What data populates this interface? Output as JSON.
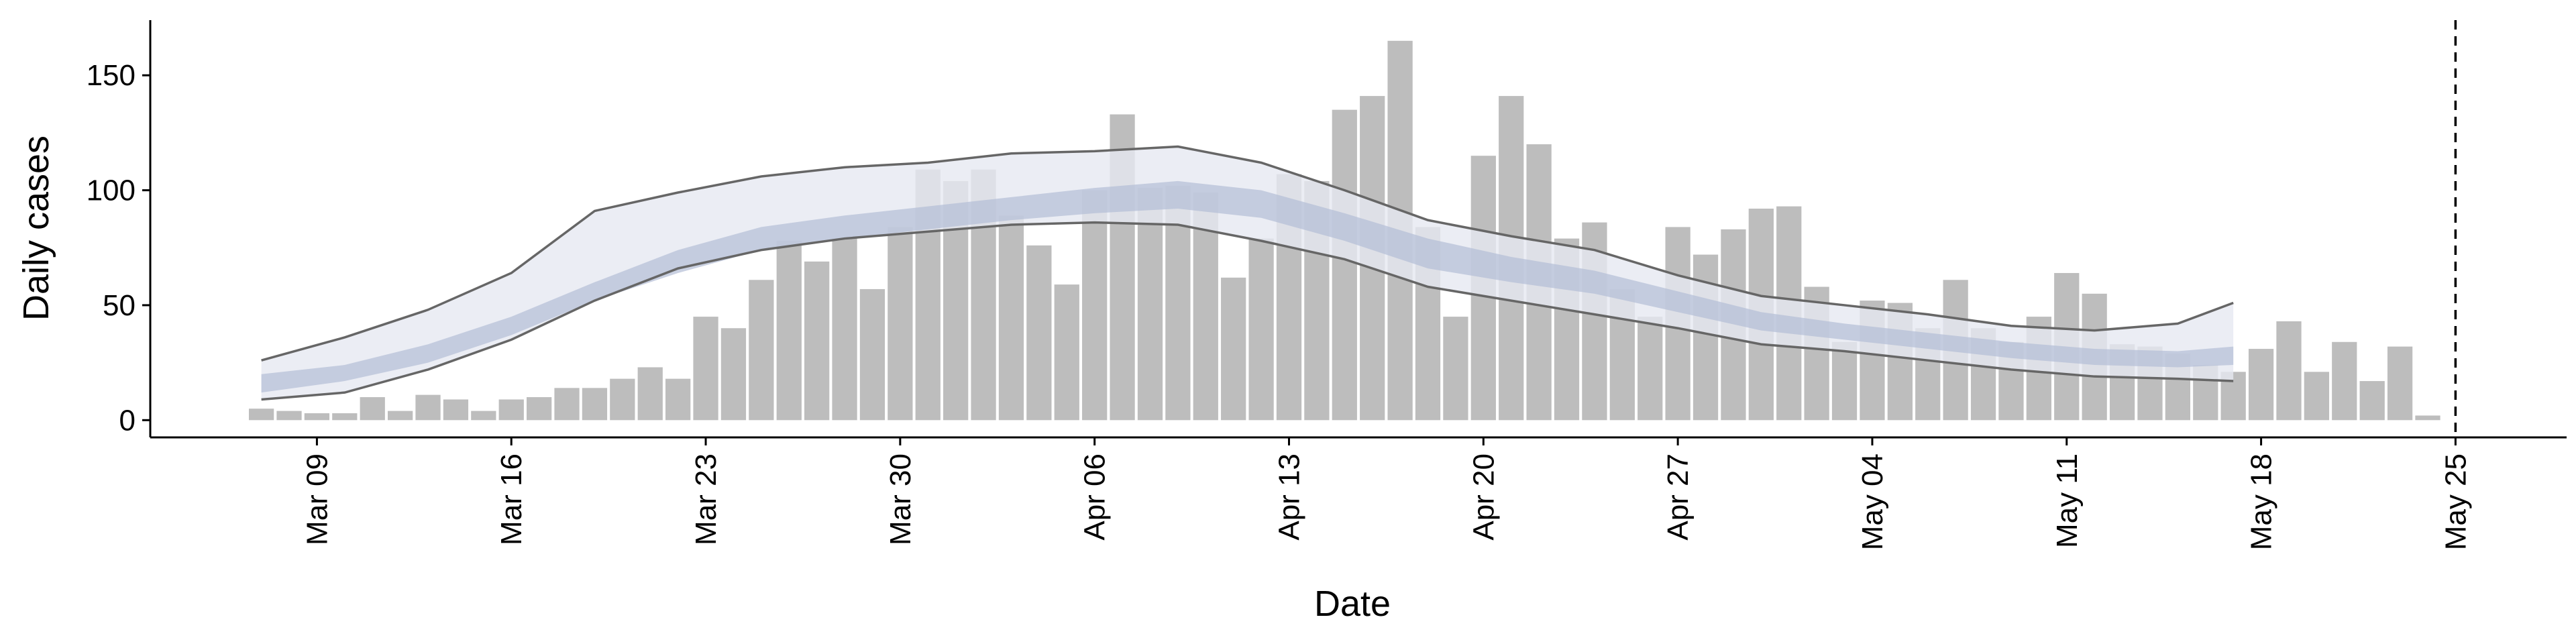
{
  "chart_data": {
    "type": "bar",
    "x_label": "Date",
    "y_label": "Daily cases",
    "x": [
      "Mar 07",
      "Mar 08",
      "Mar 09",
      "Mar 10",
      "Mar 11",
      "Mar 12",
      "Mar 13",
      "Mar 14",
      "Mar 15",
      "Mar 16",
      "Mar 17",
      "Mar 18",
      "Mar 19",
      "Mar 20",
      "Mar 21",
      "Mar 22",
      "Mar 23",
      "Mar 24",
      "Mar 25",
      "Mar 26",
      "Mar 27",
      "Mar 28",
      "Mar 29",
      "Mar 30",
      "Mar 31",
      "Apr 01",
      "Apr 02",
      "Apr 03",
      "Apr 04",
      "Apr 05",
      "Apr 06",
      "Apr 07",
      "Apr 08",
      "Apr 09",
      "Apr 10",
      "Apr 11",
      "Apr 12",
      "Apr 13",
      "Apr 14",
      "Apr 15",
      "Apr 16",
      "Apr 17",
      "Apr 18",
      "Apr 19",
      "Apr 20",
      "Apr 21",
      "Apr 22",
      "Apr 23",
      "Apr 24",
      "Apr 25",
      "Apr 26",
      "Apr 27",
      "Apr 28",
      "Apr 29",
      "Apr 30",
      "May 01",
      "May 02",
      "May 03",
      "May 04",
      "May 05",
      "May 06",
      "May 07",
      "May 08",
      "May 09",
      "May 10",
      "May 11",
      "May 12",
      "May 13",
      "May 14",
      "May 15",
      "May 16",
      "May 17",
      "May 18",
      "May 19",
      "May 20",
      "May 21",
      "May 22",
      "May 23",
      "May 24"
    ],
    "values": [
      5,
      4,
      3,
      3,
      10,
      4,
      11,
      9,
      4,
      9,
      10,
      14,
      14,
      18,
      23,
      18,
      45,
      40,
      61,
      78,
      69,
      79,
      57,
      84,
      109,
      104,
      109,
      89,
      76,
      59,
      100,
      133,
      101,
      102,
      99,
      62,
      79,
      107,
      104,
      135,
      141,
      165,
      84,
      45,
      115,
      141,
      120,
      79,
      86,
      57,
      45,
      84,
      72,
      83,
      92,
      93,
      58,
      34,
      52,
      51,
      40,
      61,
      40,
      34,
      45,
      64,
      55,
      33,
      32,
      29,
      24,
      21,
      31,
      43,
      21,
      34,
      17,
      32,
      2
    ],
    "color": "#bdbdbd",
    "ribbon": {
      "x": [
        "Mar 07",
        "Mar 10",
        "Mar 13",
        "Mar 16",
        "Mar 19",
        "Mar 22",
        "Mar 25",
        "Mar 28",
        "Mar 31",
        "Apr 03",
        "Apr 06",
        "Apr 09",
        "Apr 12",
        "Apr 15",
        "Apr 18",
        "Apr 21",
        "Apr 24",
        "Apr 27",
        "Apr 30",
        "May 03",
        "May 06",
        "May 09",
        "May 12",
        "May 15",
        "May 17"
      ],
      "outer_color": "#e6e8f1",
      "inner_color": "#b4bdd6",
      "line_color": "#666666",
      "outer_upper": [
        26,
        36,
        48,
        64,
        91,
        99,
        106,
        110,
        112,
        116,
        117,
        119,
        112,
        100,
        87,
        80,
        74,
        63,
        54,
        50,
        46,
        41,
        39,
        42,
        51
      ],
      "outer_lower": [
        9,
        12,
        22,
        35,
        52,
        66,
        74,
        79,
        82,
        85,
        86,
        85,
        78,
        70,
        58,
        52,
        46,
        40,
        33,
        30,
        26,
        22,
        19,
        18,
        17
      ],
      "inner_upper": [
        20,
        24,
        33,
        45,
        60,
        74,
        84,
        89,
        93,
        97,
        101,
        104,
        100,
        90,
        79,
        71,
        65,
        56,
        47,
        42,
        38,
        34,
        31,
        30,
        32
      ],
      "inner_lower": [
        12,
        17,
        25,
        37,
        52,
        64,
        74,
        79,
        83,
        87,
        90,
        92,
        88,
        78,
        66,
        60,
        55,
        47,
        39,
        35,
        31,
        27,
        24,
        23,
        24
      ]
    },
    "vline": "May 25",
    "xlim": [
      "Mar 03",
      "May 29"
    ],
    "xticks": [
      "Mar 09",
      "Mar 16",
      "Mar 23",
      "Mar 30",
      "Apr 06",
      "Apr 13",
      "Apr 20",
      "Apr 27",
      "May 04",
      "May 11",
      "May 18",
      "May 25"
    ],
    "ylim": [
      -7.5,
      174
    ],
    "yticks": [
      0,
      50,
      100,
      150
    ]
  }
}
